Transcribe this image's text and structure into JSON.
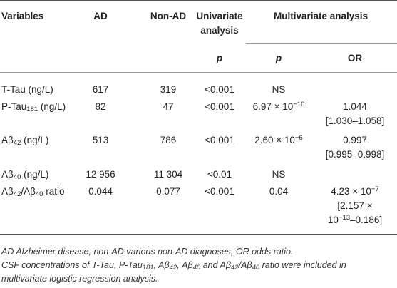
{
  "headers": {
    "variables": "Variables",
    "ad": "AD",
    "non_ad": "Non-AD",
    "univariate_line1": "Univariate",
    "univariate_line2": "analysis",
    "multivariate": "Multivariate analysis",
    "p_univariate": "p",
    "p_multivariate": "p",
    "or": "OR"
  },
  "rows": [
    {
      "variable_main": "T-Tau (ng/L)",
      "ad": "617",
      "non_ad": "319",
      "univariate_p": "<0.001",
      "multi_p": "NS",
      "or_line1": "",
      "or_line2": ""
    },
    {
      "variable_pre": "P-Tau",
      "variable_sub": "181",
      "variable_post": " (ng/L)",
      "ad": "82",
      "non_ad": "47",
      "univariate_p": "<0.001",
      "multi_p_base": "6.97 × 10",
      "multi_p_exp": "−10",
      "or_line1": "1.044",
      "or_line2": "[1.030–1.058]"
    },
    {
      "variable_pre": "Aβ",
      "variable_sub": "42",
      "variable_post": " (ng/L)",
      "ad": "513",
      "non_ad": "786",
      "univariate_p": "<0.001",
      "multi_p_base": "2.60 × 10",
      "multi_p_exp": "−6",
      "or_line1": "0.997",
      "or_line2": "[0.995–0.998]"
    },
    {
      "variable_pre": "Aβ",
      "variable_sub": "40",
      "variable_post": " (ng/L)",
      "ad": "12 956",
      "non_ad": "11 304",
      "univariate_p": "<0.01",
      "multi_p": "NS",
      "or_line1": "",
      "or_line2": ""
    },
    {
      "variable_pre": "Aβ",
      "variable_sub": "42",
      "variable_mid": "/Aβ",
      "variable_sub2": "40",
      "variable_post": " ratio",
      "ad": "0.044",
      "non_ad": "0.077",
      "univariate_p": "<0.001",
      "multi_p": "0.04",
      "or_base": "4.23 × 10",
      "or_exp": "−7",
      "or_line2": "[2.157 ×",
      "or_line3_base": "10",
      "or_line3_exp": "−13",
      "or_line3_post": "–0.186]"
    }
  ],
  "footnotes": {
    "line1": "AD Alzheimer disease, non-AD various non-AD diagnoses, OR odds ratio.",
    "line2_pre": "CSF concentrations of T-Tau, P-Tau",
    "line2_sub1": "181",
    "line2_mid1": ", Aβ",
    "line2_sub2": "42",
    "line2_mid2": ", Aβ",
    "line2_sub3": "40",
    "line2_mid3": " and Aβ",
    "line2_sub4": "42",
    "line2_mid4": "/Aβ",
    "line2_sub5": "40",
    "line2_post": " ratio were included in",
    "line3": "multivariate logistic regression analysis."
  }
}
